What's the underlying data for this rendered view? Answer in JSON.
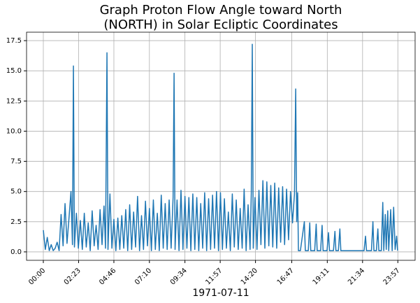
{
  "chart_data": {
    "type": "line",
    "title": [
      "Graph Proton Flow Angle toward North",
      "(NORTH) in Solar Ecliptic Coordinates"
    ],
    "xlabel": "1971-07-11",
    "color": "#1f77b4",
    "grid": true,
    "xlim": [
      -68,
      1507
    ],
    "ylim": [
      -0.7,
      18.2
    ],
    "xticks": [
      {
        "value": 0,
        "label": "00:00"
      },
      {
        "value": 143,
        "label": "02:23"
      },
      {
        "value": 286,
        "label": "04:46"
      },
      {
        "value": 430,
        "label": "07:10"
      },
      {
        "value": 574,
        "label": "09:34"
      },
      {
        "value": 717,
        "label": "11:57"
      },
      {
        "value": 860,
        "label": "14:20"
      },
      {
        "value": 1007,
        "label": "16:47"
      },
      {
        "value": 1151,
        "label": "19:11"
      },
      {
        "value": 1294,
        "label": "21:34"
      },
      {
        "value": 1437,
        "label": "23:57"
      }
    ],
    "yticks": [
      {
        "value": 0,
        "label": "0.0"
      },
      {
        "value": 2.5,
        "label": "2.5"
      },
      {
        "value": 5,
        "label": "5.0"
      },
      {
        "value": 7.5,
        "label": "7.5"
      },
      {
        "value": 10,
        "label": "10.0"
      },
      {
        "value": 12.5,
        "label": "12.5"
      },
      {
        "value": 15,
        "label": "15.0"
      },
      {
        "value": 17.5,
        "label": "17.5"
      }
    ],
    "x": [
      0,
      8,
      16,
      24,
      32,
      40,
      48,
      56,
      64,
      72,
      80,
      88,
      96,
      104,
      112,
      118,
      122,
      126,
      134,
      142,
      150,
      158,
      166,
      174,
      182,
      190,
      198,
      206,
      214,
      222,
      230,
      238,
      246,
      252,
      258,
      262,
      270,
      278,
      286,
      294,
      302,
      310,
      318,
      326,
      334,
      342,
      350,
      358,
      366,
      374,
      382,
      390,
      398,
      406,
      414,
      422,
      430,
      438,
      446,
      454,
      462,
      470,
      478,
      486,
      494,
      502,
      510,
      518,
      526,
      530,
      534,
      542,
      550,
      558,
      566,
      574,
      582,
      590,
      598,
      606,
      614,
      622,
      630,
      638,
      646,
      654,
      662,
      670,
      678,
      686,
      694,
      702,
      710,
      718,
      726,
      734,
      742,
      750,
      758,
      766,
      774,
      782,
      790,
      798,
      806,
      814,
      822,
      830,
      838,
      843,
      847,
      851,
      858,
      866,
      874,
      882,
      890,
      898,
      906,
      914,
      922,
      930,
      938,
      946,
      954,
      962,
      970,
      978,
      986,
      994,
      1002,
      1010,
      1018,
      1023,
      1027,
      1031,
      1034,
      1042,
      1058,
      1062,
      1074,
      1080,
      1084,
      1100,
      1106,
      1110,
      1124,
      1130,
      1134,
      1150,
      1156,
      1160,
      1176,
      1182,
      1186,
      1196,
      1202,
      1206,
      1300,
      1306,
      1310,
      1330,
      1336,
      1340,
      1350,
      1356,
      1360,
      1370,
      1376,
      1380,
      1386,
      1390,
      1396,
      1400,
      1408,
      1414,
      1420,
      1426,
      1432,
      1436
    ],
    "values": [
      1.8,
      0.2,
      1.2,
      0.1,
      0.6,
      0.1,
      0.3,
      0.8,
      0.1,
      3.1,
      0.5,
      4.0,
      0.7,
      2.8,
      5.0,
      0.6,
      15.4,
      0.4,
      3.2,
      0.3,
      2.6,
      0.2,
      3.2,
      0.4,
      2.4,
      0.1,
      3.4,
      0.5,
      2.2,
      0.2,
      3.5,
      0.6,
      3.8,
      0.3,
      16.5,
      0.2,
      4.8,
      0.3,
      2.7,
      0.1,
      2.8,
      0.2,
      3.0,
      0.3,
      3.5,
      0.1,
      3.9,
      0.2,
      3.3,
      0.4,
      4.6,
      0.1,
      3.0,
      0.2,
      4.2,
      0.5,
      3.6,
      0.1,
      4.3,
      0.2,
      3.2,
      0.1,
      4.7,
      0.3,
      4.0,
      0.2,
      4.3,
      0.3,
      4.5,
      14.8,
      0.2,
      4.3,
      0.1,
      5.1,
      0.2,
      4.6,
      0.3,
      4.5,
      0.1,
      4.8,
      0.2,
      4.5,
      0.1,
      4.0,
      0.3,
      4.9,
      0.1,
      4.4,
      0.2,
      4.7,
      0.3,
      5.0,
      0.1,
      4.9,
      0.2,
      4.4,
      0.3,
      3.3,
      0.1,
      4.8,
      0.4,
      4.3,
      0.2,
      3.6,
      0.3,
      5.2,
      0.1,
      3.9,
      0.2,
      4.9,
      17.2,
      0.3,
      4.5,
      0.2,
      5.1,
      0.6,
      5.9,
      0.3,
      5.8,
      0.5,
      5.5,
      0.4,
      5.7,
      0.3,
      5.3,
      0.8,
      5.4,
      0.6,
      5.2,
      1.0,
      5.0,
      2.4,
      4.8,
      13.5,
      2.5,
      4.9,
      0.1,
      0.1,
      2.5,
      0.1,
      0.1,
      2.4,
      0.1,
      0.1,
      2.3,
      0.1,
      0.1,
      2.2,
      0.1,
      0.1,
      1.6,
      0.1,
      0.1,
      1.7,
      0.1,
      0.1,
      1.9,
      0.1,
      0.1,
      1.3,
      0.1,
      0.1,
      2.5,
      0.1,
      0.1,
      1.9,
      0.1,
      0.1,
      4.1,
      0.1,
      3.1,
      0.2,
      3.4,
      0.1,
      3.5,
      0.1,
      3.7,
      0.2,
      1.3,
      0.1
    ]
  }
}
